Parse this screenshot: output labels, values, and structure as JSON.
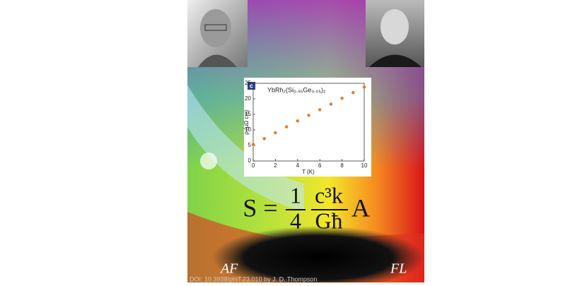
{
  "chart_data": {
    "type": "scatter",
    "title": "YbRh₂(Si₀.₉₅Ge₀.₀₅)₂",
    "panel_label": "c",
    "x_label": "T (K)",
    "y_label": "ρ (μΩ cm)",
    "x": [
      0,
      1,
      2,
      3,
      4,
      5,
      6,
      7,
      8,
      9,
      10
    ],
    "values": [
      5.3,
      7.2,
      9.1,
      11.0,
      12.9,
      14.7,
      16.5,
      18.3,
      20.2,
      22.0,
      23.8
    ],
    "color": "#e87722",
    "xlim": [
      0,
      10
    ],
    "xticks": [
      0,
      2,
      4,
      6,
      8,
      10
    ],
    "ylim": [
      0,
      25
    ],
    "yticks": [
      0,
      5,
      10,
      15,
      20,
      25
    ]
  },
  "formula": {
    "lhs": "S =",
    "num1": "1",
    "den1": "4",
    "num2": "c³k",
    "den2": "Għ",
    "tail": "A"
  },
  "labels": [
    "AF",
    "FL"
  ],
  "credit": "DOI: 10.3938/phiT.23.010 by J. D. Thompson"
}
